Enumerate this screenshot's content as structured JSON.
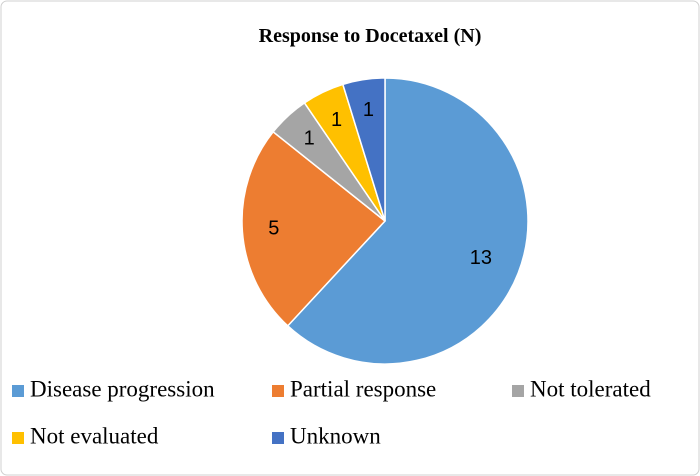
{
  "chart_data": {
    "type": "pie",
    "title": "Response to Docetaxel (N)",
    "categories": [
      "Disease progression",
      "Partial response",
      "Not tolerated",
      "Not evaluated",
      "Unknown"
    ],
    "values": [
      13,
      5,
      1,
      1,
      1
    ],
    "colors": [
      "#5b9bd5",
      "#ed7d31",
      "#a5a5a5",
      "#ffc000",
      "#4472c4"
    ],
    "legend": "bottom"
  }
}
